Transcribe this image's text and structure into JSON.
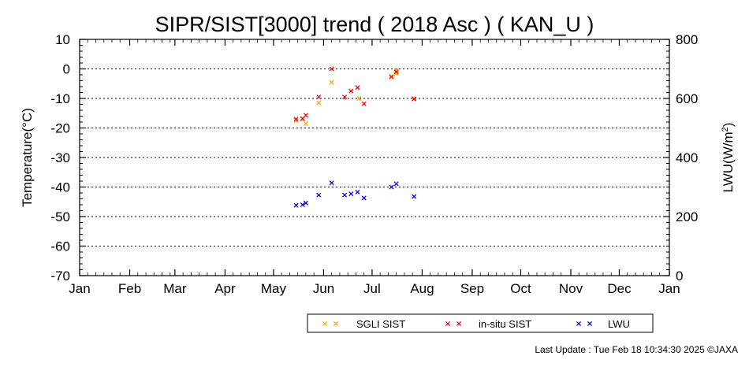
{
  "chart_data": {
    "type": "scatter",
    "title": "SIPR/SIST[3000] trend ( 2018 Asc ) ( KAN_U )",
    "ylabel": "Temperature(°C)",
    "y2label_main": "LWU(W/m",
    "y2label_sup": "2",
    "y2label_tail": ")",
    "ylim": [
      -70,
      10
    ],
    "y2lim": [
      0,
      800
    ],
    "yticks": [
      "10",
      "0",
      "-10",
      "-20",
      "-30",
      "-40",
      "-50",
      "-60",
      "-70"
    ],
    "y2ticks": [
      "800",
      "600",
      "400",
      "200",
      "0"
    ],
    "xticks": [
      "Jan",
      "Feb",
      "Mar",
      "Apr",
      "May",
      "Jun",
      "Jul",
      "Aug",
      "Sep",
      "Oct",
      "Nov",
      "Dec",
      "Jan"
    ],
    "grid": "horizontal dotted",
    "legend_position": "bottom",
    "colors": {
      "sgli": "#ffa500",
      "insitu": "#ff0000",
      "lwu": "#0000ff"
    },
    "series": [
      {
        "name": "SGLI SIST",
        "axis": "left",
        "points": [
          [
            "05-15",
            -17.5
          ],
          [
            "05-19",
            -17.0
          ],
          [
            "05-21",
            -18.5
          ],
          [
            "05-29",
            -11.5
          ],
          [
            "06-06",
            -4.5
          ],
          [
            "06-23",
            -10.0
          ],
          [
            "07-13",
            -2.5
          ],
          [
            "07-16",
            -0.5
          ],
          [
            "07-16",
            -1.5
          ],
          [
            "07-27",
            -10.0
          ]
        ]
      },
      {
        "name": "in-situ SIST",
        "axis": "left",
        "points": [
          [
            "05-15",
            -17.0
          ],
          [
            "05-19",
            -16.8
          ],
          [
            "05-21",
            -15.7
          ],
          [
            "05-29",
            -9.5
          ],
          [
            "06-06",
            0.0
          ],
          [
            "06-14",
            -9.5
          ],
          [
            "06-18",
            -7.5
          ],
          [
            "06-22",
            -6.3
          ],
          [
            "06-26",
            -11.8
          ],
          [
            "07-13",
            -2.7
          ],
          [
            "07-16",
            -1.0
          ],
          [
            "07-27",
            -10.2
          ]
        ]
      },
      {
        "name": "LWU",
        "axis": "right",
        "points": [
          [
            "05-15",
            238
          ],
          [
            "05-19",
            240
          ],
          [
            "05-21",
            246
          ],
          [
            "05-29",
            273
          ],
          [
            "06-06",
            314
          ],
          [
            "06-14",
            273
          ],
          [
            "06-18",
            277
          ],
          [
            "06-22",
            283
          ],
          [
            "06-26",
            263
          ],
          [
            "07-13",
            300
          ],
          [
            "07-16",
            311
          ],
          [
            "07-27",
            268
          ]
        ]
      }
    ]
  },
  "footer": "Last Update : Tue Feb 18 10:34:30 2025  ©JAXA"
}
